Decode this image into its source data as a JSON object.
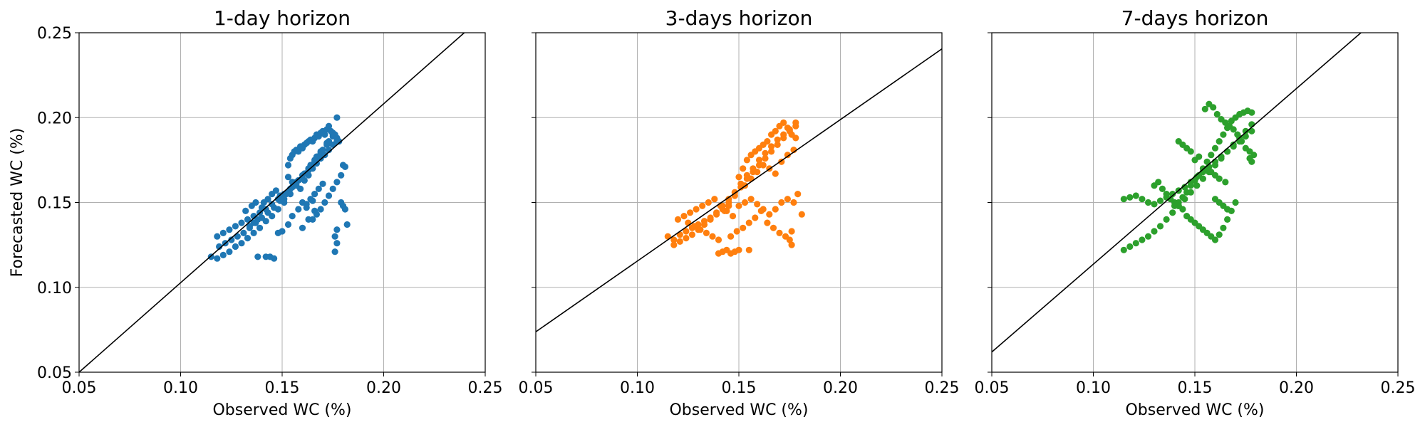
{
  "chart_data": [
    {
      "type": "scatter",
      "title": "1-day horizon",
      "xlabel": "Observed WC (%)",
      "ylabel": "Forecasted WC (%)",
      "xlim": [
        0.05,
        0.25
      ],
      "ylim": [
        0.05,
        0.25
      ],
      "xticks": [
        "0.05",
        "0.10",
        "0.15",
        "0.20",
        "0.25"
      ],
      "yticks": [
        "0.05",
        "0.10",
        "0.15",
        "0.20",
        "0.25"
      ],
      "grid": true,
      "color": "#1f77b4",
      "fit_line": {
        "x": [
          0.05,
          0.2397
        ],
        "y": [
          0.05,
          0.25
        ]
      },
      "x": [
        0.115,
        0.118,
        0.121,
        0.124,
        0.127,
        0.13,
        0.133,
        0.136,
        0.139,
        0.142,
        0.145,
        0.148,
        0.151,
        0.154,
        0.157,
        0.16,
        0.163,
        0.166,
        0.169,
        0.172,
        0.175,
        0.177,
        0.118,
        0.121,
        0.124,
        0.127,
        0.13,
        0.133,
        0.136,
        0.139,
        0.142,
        0.145,
        0.148,
        0.151,
        0.154,
        0.157,
        0.16,
        0.163,
        0.166,
        0.169,
        0.172,
        0.175,
        0.119,
        0.122,
        0.125,
        0.128,
        0.131,
        0.134,
        0.137,
        0.14,
        0.143,
        0.146,
        0.149,
        0.152,
        0.155,
        0.158,
        0.161,
        0.164,
        0.167,
        0.17,
        0.173,
        0.176,
        0.153,
        0.154,
        0.155,
        0.156,
        0.157,
        0.158,
        0.159,
        0.16,
        0.161,
        0.162,
        0.163,
        0.164,
        0.165,
        0.166,
        0.167,
        0.168,
        0.169,
        0.17,
        0.171,
        0.172,
        0.173,
        0.174,
        0.175,
        0.176,
        0.177,
        0.178,
        0.153,
        0.155,
        0.157,
        0.159,
        0.161,
        0.163,
        0.165,
        0.167,
        0.169,
        0.171,
        0.173,
        0.175,
        0.177,
        0.16,
        0.162,
        0.164,
        0.166,
        0.168,
        0.17,
        0.165,
        0.167,
        0.169,
        0.171,
        0.173,
        0.175,
        0.177,
        0.179,
        0.18,
        0.181,
        0.179,
        0.18,
        0.181,
        0.176,
        0.177,
        0.176,
        0.177,
        0.182,
        0.142,
        0.144,
        0.146,
        0.138,
        0.148,
        0.15,
        0.153,
        0.16,
        0.163,
        0.166,
        0.141,
        0.143,
        0.145,
        0.147,
        0.149,
        0.151,
        0.153,
        0.134,
        0.136,
        0.138,
        0.132,
        0.135,
        0.137,
        0.14,
        0.155,
        0.158,
        0.162,
        0.165
      ],
      "y": [
        0.118,
        0.117,
        0.119,
        0.121,
        0.124,
        0.126,
        0.129,
        0.132,
        0.135,
        0.139,
        0.142,
        0.146,
        0.15,
        0.155,
        0.16,
        0.164,
        0.169,
        0.174,
        0.179,
        0.184,
        0.189,
        0.2,
        0.13,
        0.132,
        0.134,
        0.136,
        0.138,
        0.14,
        0.142,
        0.144,
        0.146,
        0.149,
        0.152,
        0.155,
        0.158,
        0.162,
        0.166,
        0.17,
        0.175,
        0.18,
        0.185,
        0.19,
        0.124,
        0.126,
        0.128,
        0.13,
        0.132,
        0.135,
        0.138,
        0.141,
        0.144,
        0.147,
        0.151,
        0.155,
        0.159,
        0.163,
        0.167,
        0.172,
        0.177,
        0.181,
        0.186,
        0.189,
        0.172,
        0.176,
        0.178,
        0.18,
        0.181,
        0.18,
        0.183,
        0.182,
        0.184,
        0.185,
        0.186,
        0.187,
        0.186,
        0.188,
        0.19,
        0.189,
        0.191,
        0.192,
        0.19,
        0.193,
        0.195,
        0.192,
        0.191,
        0.19,
        0.188,
        0.186,
        0.165,
        0.162,
        0.16,
        0.158,
        0.163,
        0.166,
        0.17,
        0.173,
        0.176,
        0.178,
        0.181,
        0.184,
        0.186,
        0.15,
        0.147,
        0.152,
        0.155,
        0.158,
        0.161,
        0.14,
        0.143,
        0.146,
        0.15,
        0.154,
        0.158,
        0.162,
        0.166,
        0.172,
        0.171,
        0.15,
        0.148,
        0.146,
        0.121,
        0.126,
        0.13,
        0.134,
        0.137,
        0.118,
        0.118,
        0.117,
        0.118,
        0.132,
        0.133,
        0.137,
        0.135,
        0.14,
        0.145,
        0.15,
        0.152,
        0.155,
        0.157,
        0.154,
        0.152,
        0.156,
        0.136,
        0.138,
        0.14,
        0.145,
        0.148,
        0.15,
        0.147,
        0.142,
        0.146,
        0.149,
        0.151
      ]
    },
    {
      "type": "scatter",
      "title": "3-days horizon",
      "xlabel": "Observed WC (%)",
      "ylabel": "",
      "xlim": [
        0.05,
        0.25
      ],
      "ylim": [
        0.05,
        0.25
      ],
      "xticks": [
        "0.05",
        "0.10",
        "0.15",
        "0.20",
        "0.25"
      ],
      "grid": true,
      "color": "#ff7f0e",
      "fit_line": {
        "x": [
          0.05,
          0.25
        ],
        "y": [
          0.0738,
          0.2405
        ]
      },
      "x": [
        0.115,
        0.118,
        0.121,
        0.124,
        0.127,
        0.13,
        0.133,
        0.136,
        0.139,
        0.142,
        0.145,
        0.148,
        0.151,
        0.154,
        0.157,
        0.16,
        0.163,
        0.166,
        0.169,
        0.172,
        0.175,
        0.178,
        0.118,
        0.121,
        0.124,
        0.127,
        0.13,
        0.133,
        0.136,
        0.139,
        0.142,
        0.145,
        0.148,
        0.151,
        0.154,
        0.157,
        0.16,
        0.163,
        0.166,
        0.169,
        0.172,
        0.175,
        0.178,
        0.15,
        0.152,
        0.154,
        0.156,
        0.158,
        0.16,
        0.162,
        0.164,
        0.166,
        0.168,
        0.17,
        0.172,
        0.174,
        0.176,
        0.178,
        0.153,
        0.156,
        0.159,
        0.162,
        0.165,
        0.168,
        0.171,
        0.174,
        0.177,
        0.15,
        0.153,
        0.156,
        0.159,
        0.162,
        0.165,
        0.168,
        0.171,
        0.174,
        0.177,
        0.179,
        0.181,
        0.146,
        0.149,
        0.152,
        0.155,
        0.158,
        0.161,
        0.164,
        0.167,
        0.17,
        0.173,
        0.176,
        0.14,
        0.142,
        0.144,
        0.146,
        0.148,
        0.15,
        0.143,
        0.145,
        0.155,
        0.175,
        0.176,
        0.12,
        0.123,
        0.126,
        0.129,
        0.132,
        0.135,
        0.138,
        0.141,
        0.144,
        0.147,
        0.125,
        0.128,
        0.131,
        0.134,
        0.137,
        0.14
      ],
      "y": [
        0.13,
        0.128,
        0.131,
        0.133,
        0.135,
        0.137,
        0.139,
        0.141,
        0.143,
        0.146,
        0.15,
        0.154,
        0.159,
        0.164,
        0.168,
        0.172,
        0.176,
        0.18,
        0.184,
        0.188,
        0.192,
        0.195,
        0.125,
        0.127,
        0.129,
        0.131,
        0.134,
        0.137,
        0.14,
        0.144,
        0.148,
        0.152,
        0.156,
        0.161,
        0.166,
        0.17,
        0.175,
        0.179,
        0.183,
        0.187,
        0.19,
        0.193,
        0.197,
        0.165,
        0.17,
        0.175,
        0.178,
        0.18,
        0.182,
        0.184,
        0.186,
        0.19,
        0.192,
        0.195,
        0.197,
        0.194,
        0.19,
        0.188,
        0.16,
        0.164,
        0.168,
        0.172,
        0.17,
        0.167,
        0.174,
        0.178,
        0.181,
        0.148,
        0.15,
        0.152,
        0.149,
        0.146,
        0.143,
        0.146,
        0.15,
        0.152,
        0.15,
        0.155,
        0.143,
        0.13,
        0.133,
        0.135,
        0.138,
        0.141,
        0.145,
        0.138,
        0.135,
        0.132,
        0.13,
        0.125,
        0.12,
        0.121,
        0.122,
        0.12,
        0.121,
        0.122,
        0.145,
        0.148,
        0.122,
        0.128,
        0.133,
        0.14,
        0.142,
        0.144,
        0.146,
        0.148,
        0.15,
        0.152,
        0.148,
        0.145,
        0.142,
        0.138,
        0.136,
        0.134,
        0.132,
        0.13,
        0.128
      ]
    },
    {
      "type": "scatter",
      "title": "7-days horizon",
      "xlabel": "Observed WC (%)",
      "ylabel": "",
      "xlim": [
        0.05,
        0.25
      ],
      "ylim": [
        0.05,
        0.25
      ],
      "xticks": [
        "0.05",
        "0.10",
        "0.15",
        "0.20",
        "0.25"
      ],
      "grid": true,
      "color": "#2ca02c",
      "fit_line": {
        "x": [
          0.05,
          0.2318
        ],
        "y": [
          0.0619,
          0.25
        ]
      },
      "x": [
        0.115,
        0.118,
        0.121,
        0.124,
        0.127,
        0.13,
        0.133,
        0.136,
        0.139,
        0.142,
        0.145,
        0.148,
        0.151,
        0.154,
        0.157,
        0.16,
        0.163,
        0.166,
        0.169,
        0.172,
        0.175,
        0.178,
        0.115,
        0.118,
        0.121,
        0.124,
        0.127,
        0.13,
        0.133,
        0.136,
        0.139,
        0.142,
        0.145,
        0.148,
        0.151,
        0.154,
        0.157,
        0.16,
        0.163,
        0.166,
        0.169,
        0.172,
        0.175,
        0.178,
        0.14,
        0.142,
        0.144,
        0.146,
        0.148,
        0.15,
        0.152,
        0.154,
        0.156,
        0.158,
        0.16,
        0.162,
        0.164,
        0.166,
        0.168,
        0.17,
        0.172,
        0.174,
        0.176,
        0.178,
        0.13,
        0.132,
        0.134,
        0.136,
        0.138,
        0.14,
        0.142,
        0.144,
        0.146,
        0.148,
        0.15,
        0.152,
        0.154,
        0.156,
        0.158,
        0.16,
        0.162,
        0.164,
        0.166,
        0.168,
        0.17,
        0.155,
        0.157,
        0.159,
        0.161,
        0.163,
        0.165,
        0.167,
        0.169,
        0.171,
        0.173,
        0.175,
        0.177,
        0.179,
        0.178,
        0.177,
        0.16,
        0.162,
        0.164,
        0.166,
        0.156,
        0.158,
        0.16,
        0.162,
        0.165,
        0.15,
        0.152,
        0.148,
        0.146,
        0.144,
        0.142
      ],
      "y": [
        0.122,
        0.124,
        0.126,
        0.128,
        0.13,
        0.133,
        0.136,
        0.14,
        0.144,
        0.148,
        0.152,
        0.156,
        0.16,
        0.164,
        0.168,
        0.172,
        0.176,
        0.18,
        0.184,
        0.188,
        0.192,
        0.196,
        0.152,
        0.153,
        0.154,
        0.152,
        0.15,
        0.149,
        0.151,
        0.153,
        0.155,
        0.157,
        0.159,
        0.162,
        0.165,
        0.168,
        0.171,
        0.174,
        0.177,
        0.18,
        0.183,
        0.186,
        0.189,
        0.192,
        0.148,
        0.15,
        0.153,
        0.156,
        0.16,
        0.163,
        0.166,
        0.17,
        0.174,
        0.178,
        0.182,
        0.186,
        0.19,
        0.194,
        0.198,
        0.2,
        0.202,
        0.203,
        0.204,
        0.203,
        0.16,
        0.162,
        0.158,
        0.155,
        0.152,
        0.15,
        0.148,
        0.146,
        0.142,
        0.14,
        0.138,
        0.136,
        0.134,
        0.132,
        0.13,
        0.128,
        0.131,
        0.135,
        0.14,
        0.145,
        0.15,
        0.205,
        0.208,
        0.206,
        0.202,
        0.199,
        0.197,
        0.195,
        0.193,
        0.19,
        0.186,
        0.182,
        0.18,
        0.178,
        0.174,
        0.176,
        0.152,
        0.15,
        0.148,
        0.146,
        0.17,
        0.168,
        0.166,
        0.164,
        0.162,
        0.175,
        0.177,
        0.18,
        0.182,
        0.184,
        0.186
      ]
    }
  ]
}
